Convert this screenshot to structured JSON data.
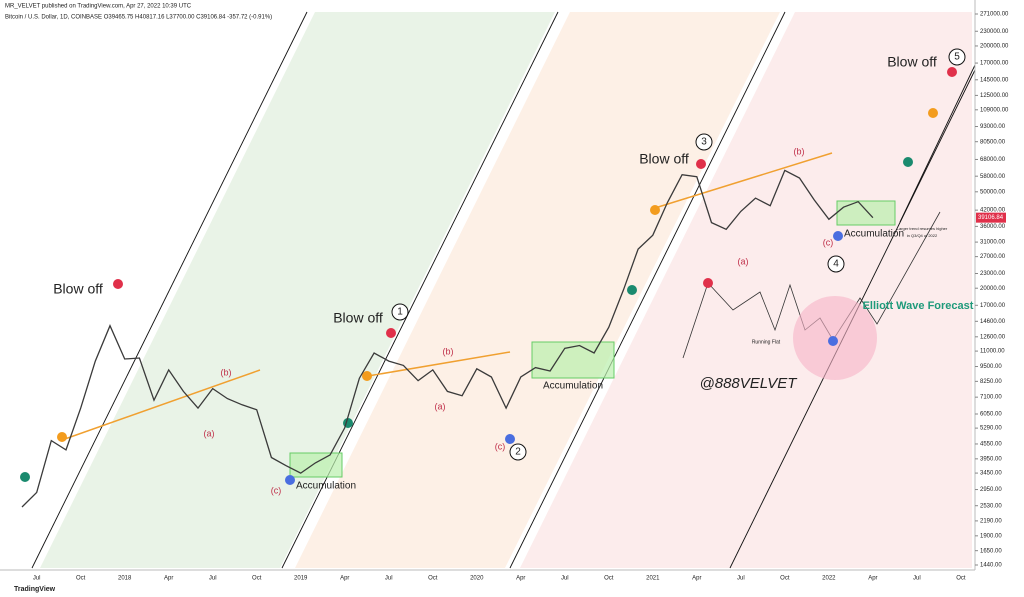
{
  "header": {
    "publisher": "MR_VELVET published on TradingView.com, Apr 27, 2022 10:39 UTC",
    "symbol": "Bitcoin / U.S. Dollar, 1D, COINBASE  O39465.75 H40817.16 L37700.00 C39106.84 -357.72 (-0.91%)"
  },
  "footer": "TradingView",
  "chart_data": {
    "type": "line",
    "color": "#3a3a3a",
    "log_scale": true,
    "grid": false,
    "categories": [
      null,
      "Jul",
      null,
      null,
      "Oct",
      null,
      null,
      "2018",
      null,
      null,
      "Apr",
      null,
      null,
      "Jul",
      null,
      null,
      "Oct",
      null,
      null,
      "2019",
      null,
      null,
      "Apr",
      null,
      null,
      "Jul",
      null,
      null,
      "Oct",
      null,
      null,
      "2020",
      null,
      null,
      "Apr",
      null,
      null,
      "Jul",
      null,
      null,
      "Oct",
      null,
      null,
      "2021",
      null,
      null,
      "Apr",
      null,
      null,
      "Jul",
      null,
      null,
      "Oct",
      null,
      null,
      "2022",
      null,
      null,
      "Apr",
      null,
      null,
      "Jul",
      null,
      null,
      "Oct"
    ],
    "values": [
      2500,
      2870,
      4700,
      4300,
      6400,
      10000,
      14000,
      10200,
      10300,
      6900,
      9200,
      7500,
      6400,
      7700,
      7000,
      6600,
      6300,
      4000,
      3700,
      3450,
      3800,
      4100,
      5300,
      8500,
      10800,
      10000,
      9600,
      8300,
      9200,
      7500,
      7200,
      9300,
      8600,
      6400,
      8600,
      9400,
      9100,
      11300,
      11600,
      10800,
      13800,
      19700,
      29000,
      33100,
      45200,
      58800,
      57700,
      37300,
      35000,
      41500,
      47100,
      43800,
      61300,
      57000,
      46300,
      38500,
      43200,
      45500,
      39100,
      null,
      null,
      null,
      null,
      null,
      null
    ],
    "last_price": 39106.84,
    "ylim": [
      1440,
      271000
    ],
    "yticks": [
      {
        "value": 271000,
        "label": "271000.00"
      },
      {
        "value": 230000,
        "label": "230000.00"
      },
      {
        "value": 200000,
        "label": "200000.00"
      },
      {
        "value": 170000,
        "label": "170000.00"
      },
      {
        "value": 145000,
        "label": "145000.00"
      },
      {
        "value": 125000,
        "label": "125000.00"
      },
      {
        "value": 109000,
        "label": "109000.00"
      },
      {
        "value": 93000,
        "label": "93000.00"
      },
      {
        "value": 80500,
        "label": "80500.00"
      },
      {
        "value": 68000,
        "label": "68000.00"
      },
      {
        "value": 58000,
        "label": "58000.00"
      },
      {
        "value": 50000,
        "label": "50000.00"
      },
      {
        "value": 42000,
        "label": "42000.00"
      },
      {
        "value": 36000,
        "label": "36000.00"
      },
      {
        "value": 31000,
        "label": "31000.00"
      },
      {
        "value": 27000,
        "label": "27000.00"
      },
      {
        "value": 23000,
        "label": "23000.00"
      },
      {
        "value": 20000,
        "label": "20000.00"
      },
      {
        "value": 17000,
        "label": "17000.00"
      },
      {
        "value": 14600,
        "label": "14600.00"
      },
      {
        "value": 12600,
        "label": "12600.00"
      },
      {
        "value": 11000,
        "label": "11000.00"
      },
      {
        "value": 9500,
        "label": "9500.00"
      },
      {
        "value": 8250,
        "label": "8250.00"
      },
      {
        "value": 7100,
        "label": "7100.00"
      },
      {
        "value": 6050,
        "label": "6050.00"
      },
      {
        "value": 5290,
        "label": "5290.00"
      },
      {
        "value": 4550,
        "label": "4550.00"
      },
      {
        "value": 3950,
        "label": "3950.00"
      },
      {
        "value": 3450,
        "label": "3450.00"
      },
      {
        "value": 2950,
        "label": "2950.00"
      },
      {
        "value": 2530,
        "label": "2530.00"
      },
      {
        "value": 2190,
        "label": "2190.00"
      },
      {
        "value": 1900,
        "label": "1900.00"
      },
      {
        "value": 1650,
        "label": "1650.00"
      },
      {
        "value": 1440,
        "label": "1440.00"
      }
    ],
    "annotations": [
      "Blow off",
      "Blow off",
      "Blow off",
      "1",
      "2",
      "3",
      "4",
      "5",
      "Blow off",
      "(a)",
      "(b)",
      "(c)",
      "(a)",
      "(b)",
      "(c)",
      "(a)",
      "(b)",
      "(c)",
      "Accumulation",
      "Accumulation",
      "Accumulation",
      "@888VELVET",
      "Elliott Wave Forecast",
      "Running Flat",
      "Larger trend resumes higher",
      "in Q3/Q4 of 2022"
    ]
  }
}
